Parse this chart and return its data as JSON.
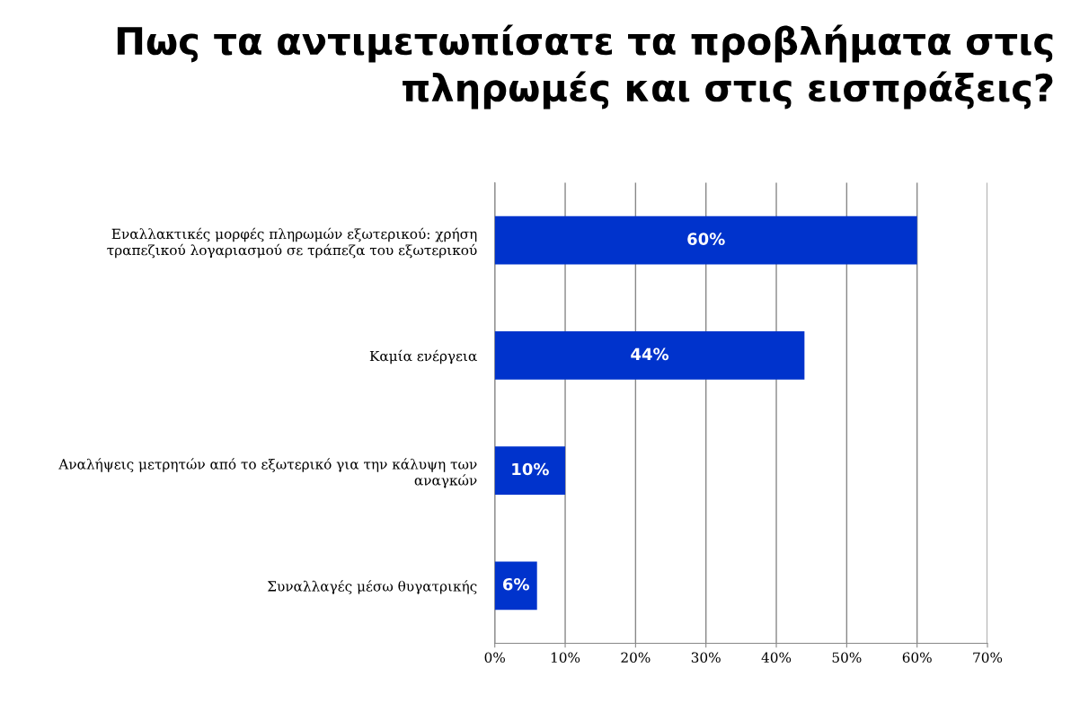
{
  "chart_data": {
    "type": "bar",
    "orientation": "horizontal",
    "title": "Πως τα αντιμετωπίσατε τα προβλήματα στις πληρωμές και στις εισπράξεις?",
    "categories": [
      "Εναλλακτικές μορφές πληρωμών εξωτερικού: χρήση\nτραπεζικού λογαριασμού σε τράπεζα του εξωτερικού",
      "Καμία ενέργεια",
      "Αναλήψεις μετρητών από το εξωτερικό για την κάλυψη των\nαναγκών",
      "Συναλλαγές μέσω θυγατρικής"
    ],
    "values": [
      60,
      44,
      10,
      6
    ],
    "value_labels": [
      "60%",
      "44%",
      "10%",
      "6%"
    ],
    "color": "#0033cc",
    "xlim": [
      0,
      70
    ],
    "xticks": [
      {
        "value": 0,
        "label": "0%"
      },
      {
        "value": 10,
        "label": "10%"
      },
      {
        "value": 20,
        "label": "20%"
      },
      {
        "value": 30,
        "label": "30%"
      },
      {
        "value": 40,
        "label": "40%"
      },
      {
        "value": 50,
        "label": "50%"
      },
      {
        "value": 60,
        "label": "60%"
      },
      {
        "value": 70,
        "label": "70%"
      }
    ],
    "grid": "x",
    "legend": false
  }
}
